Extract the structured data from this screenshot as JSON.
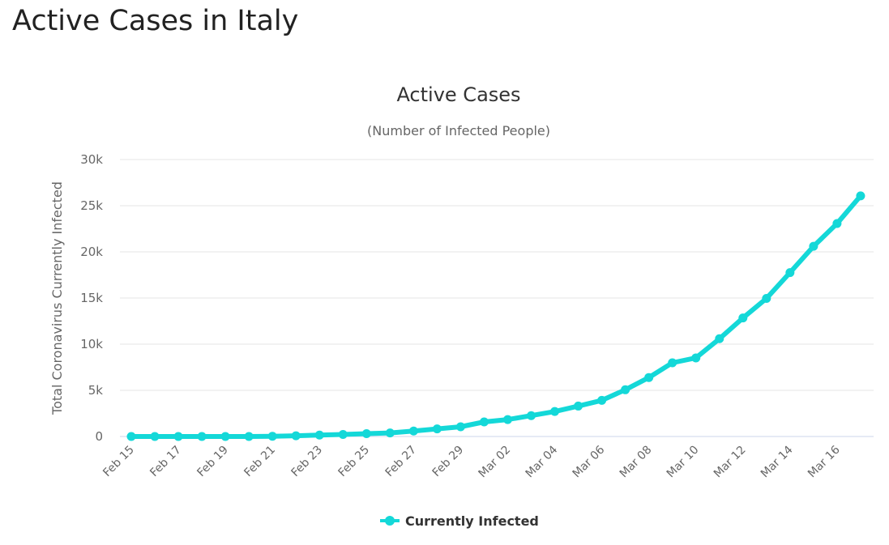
{
  "page": {
    "heading": "Active Cases in Italy"
  },
  "chart_data": {
    "type": "line",
    "title": "Active Cases",
    "subtitle": "(Number of Infected People)",
    "xlabel": "",
    "ylabel": "Total Coronavirus Currently Infected",
    "x": [
      "Feb 15",
      "Feb 16",
      "Feb 17",
      "Feb 18",
      "Feb 19",
      "Feb 20",
      "Feb 21",
      "Feb 22",
      "Feb 23",
      "Feb 24",
      "Feb 25",
      "Feb 26",
      "Feb 27",
      "Feb 28",
      "Feb 29",
      "Mar 01",
      "Mar 02",
      "Mar 03",
      "Mar 04",
      "Mar 05",
      "Mar 06",
      "Mar 07",
      "Mar 08",
      "Mar 09",
      "Mar 10",
      "Mar 11",
      "Mar 12",
      "Mar 13",
      "Mar 14",
      "Mar 15",
      "Mar 16",
      "Mar 17"
    ],
    "x_tick_labels": [
      "Feb 15",
      "Feb 17",
      "Feb 19",
      "Feb 21",
      "Feb 23",
      "Feb 25",
      "Feb 27",
      "Feb 29",
      "Mar 02",
      "Mar 04",
      "Mar 06",
      "Mar 08",
      "Mar 10",
      "Mar 12",
      "Mar 14",
      "Mar 16"
    ],
    "y_tick_labels": [
      "0",
      "5k",
      "10k",
      "15k",
      "20k",
      "25k",
      "30k"
    ],
    "ylim": [
      0,
      30000
    ],
    "grid": true,
    "legend_position": "bottom-center",
    "series": [
      {
        "name": "Currently Infected",
        "color": "#14d8d8",
        "values": [
          3,
          3,
          3,
          3,
          3,
          3,
          20,
          79,
          150,
          221,
          311,
          385,
          588,
          821,
          1049,
          1577,
          1835,
          2263,
          2706,
          3296,
          3916,
          5061,
          6387,
          7985,
          8514,
          10590,
          12839,
          14955,
          17750,
          20603,
          23073,
          26062
        ]
      }
    ]
  }
}
